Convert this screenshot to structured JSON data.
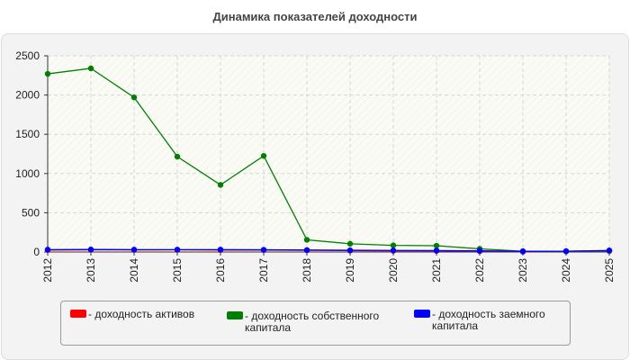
{
  "title": "Динамика показателей доходности",
  "chart_data": {
    "type": "line",
    "title": "Динамика показателей доходности",
    "xlabel": "",
    "ylabel": "",
    "categories": [
      "2012",
      "2013",
      "2014",
      "2015",
      "2016",
      "2017",
      "2018",
      "2019",
      "2020",
      "2021",
      "2022",
      "2023",
      "2024",
      "2025"
    ],
    "ylim": [
      0,
      2500
    ],
    "yticks": [
      0,
      500,
      1000,
      1500,
      2000,
      2500
    ],
    "grid": true,
    "legend_position": "bottom",
    "series": [
      {
        "name": "- доходность активов",
        "color": "#ff0000",
        "values": [
          25,
          28,
          26,
          27,
          25,
          24,
          22,
          18,
          15,
          14,
          10,
          5,
          8,
          12
        ]
      },
      {
        "name": "- доходность собственного капитала",
        "color": "#008000",
        "values": [
          2270,
          2340,
          1970,
          1215,
          855,
          1225,
          155,
          105,
          85,
          80,
          40,
          10,
          10,
          15
        ]
      },
      {
        "name": "- доходность заемного капитала",
        "color": "#0000ff",
        "values": [
          30,
          32,
          30,
          30,
          30,
          28,
          25,
          22,
          20,
          18,
          15,
          8,
          10,
          20
        ]
      }
    ]
  }
}
